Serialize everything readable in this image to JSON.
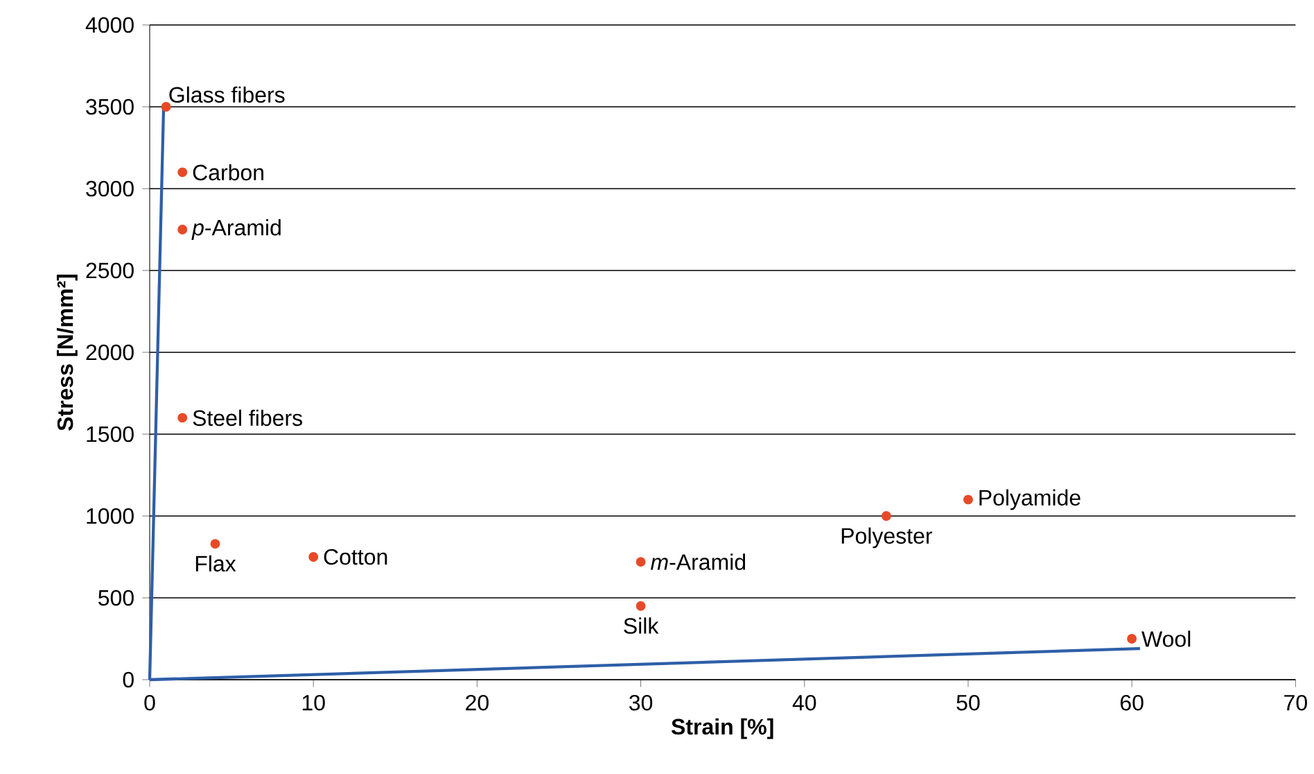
{
  "chart_data": {
    "type": "scatter",
    "xlabel": "Strain [%]",
    "ylabel": "Stress [N/mm²]",
    "xlim": [
      0,
      70
    ],
    "ylim": [
      0,
      4000
    ],
    "xticks": [
      0,
      10,
      20,
      30,
      40,
      50,
      60,
      70
    ],
    "yticks": [
      0,
      500,
      1000,
      1500,
      2000,
      2500,
      3000,
      3500,
      4000
    ],
    "grid": "y",
    "series": [
      {
        "color": "#e84a27",
        "marker": "circle",
        "x": [
          1,
          2,
          2,
          2,
          4,
          10,
          30,
          30,
          45,
          50,
          60
        ],
        "values": [
          3500,
          3100,
          2750,
          1600,
          830,
          750,
          720,
          450,
          1000,
          1100,
          250
        ]
      },
      {
        "type": "line",
        "color": "#2e5fa8",
        "marker": "none",
        "x": [
          0,
          0.85
        ],
        "values": [
          0,
          3500
        ]
      },
      {
        "type": "line",
        "color": "#2e5fa8",
        "marker": "none",
        "x": [
          0,
          60.5
        ],
        "values": [
          0,
          190
        ]
      }
    ],
    "annotations": [
      {
        "text": "Glass fibers",
        "x": 1,
        "y": 3500
      },
      {
        "text": "Carbon",
        "x": 2,
        "y": 3100
      },
      {
        "text": "*p*-Aramid",
        "x": 2,
        "y": 2750
      },
      {
        "text": "Steel fibers",
        "x": 2,
        "y": 1600
      },
      {
        "text": "Flax",
        "x": 4,
        "y": 830
      },
      {
        "text": "Cotton",
        "x": 10,
        "y": 750
      },
      {
        "text": "*m*-Aramid",
        "x": 30,
        "y": 720
      },
      {
        "text": "Silk",
        "x": 30,
        "y": 450
      },
      {
        "text": "Polyester",
        "x": 45,
        "y": 1000
      },
      {
        "text": "Polyamide",
        "x": 50,
        "y": 1100
      },
      {
        "text": "Wool",
        "x": 60,
        "y": 250
      }
    ]
  }
}
